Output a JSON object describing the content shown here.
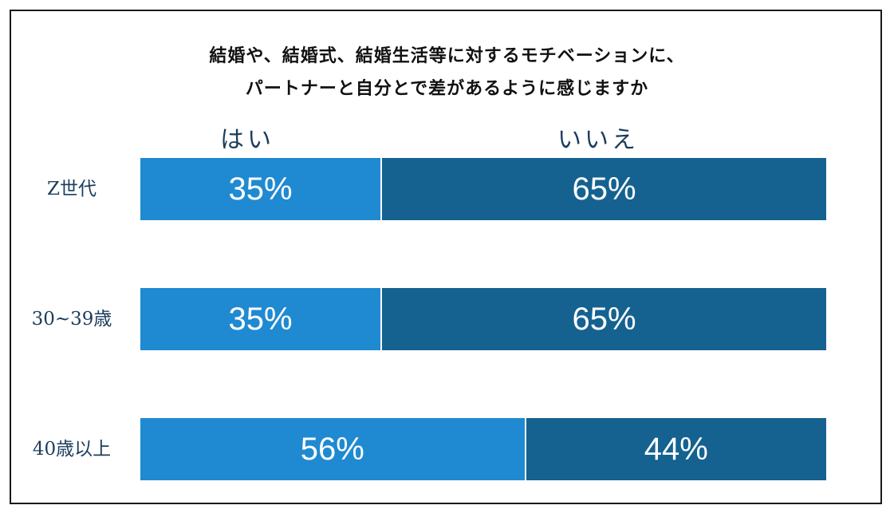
{
  "colors": {
    "yes": "#1f8ad1",
    "no": "#156290",
    "label": "#1c3d5c"
  },
  "chart_data": {
    "type": "bar",
    "orientation": "horizontal",
    "stacked": true,
    "title": "結婚や、結婚式、結婚生活等に対するモチベーションに、",
    "subtitle": "パートナーと自分とで差があるように感じますか",
    "categories": [
      "Z世代",
      "30~39歳",
      "40歳以上"
    ],
    "series": [
      {
        "name": "はい",
        "values": [
          35,
          35,
          56
        ],
        "labels": [
          "35%",
          "35%",
          "56%"
        ]
      },
      {
        "name": "いいえ",
        "values": [
          65,
          65,
          44
        ],
        "labels": [
          "65%",
          "65%",
          "44%"
        ]
      }
    ],
    "xlim": [
      0,
      100
    ],
    "unit": "%",
    "legend": "top"
  }
}
